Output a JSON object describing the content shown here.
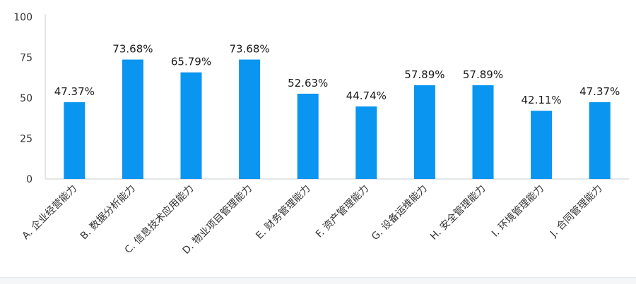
{
  "chart_data": {
    "type": "bar",
    "categories": [
      "A. 企业经营能力",
      "B. 数据分析能力",
      "C. 信息技术应用能力",
      "D. 物业项目管理能力",
      "E. 财务管理能力",
      "F. 资产管理能力",
      "G. 设备运维能力",
      "H. 安全管理能力",
      "I. 环境管理能力",
      "J. 合同管理能力"
    ],
    "values": [
      47.37,
      73.68,
      65.79,
      73.68,
      52.63,
      44.74,
      57.89,
      57.89,
      42.11,
      47.37
    ],
    "value_labels": [
      "47.37%",
      "73.68%",
      "65.79%",
      "73.68%",
      "52.63%",
      "44.74%",
      "57.89%",
      "57.89%",
      "42.11%",
      "47.37%"
    ],
    "y_ticks": [
      0,
      25,
      50,
      75,
      100
    ],
    "ylim": [
      0,
      100
    ],
    "title": "",
    "xlabel": "",
    "ylabel": "",
    "grid": false,
    "legend": "none",
    "bar_color": "#0a95f0",
    "axis_color": "#c7ccd6"
  }
}
